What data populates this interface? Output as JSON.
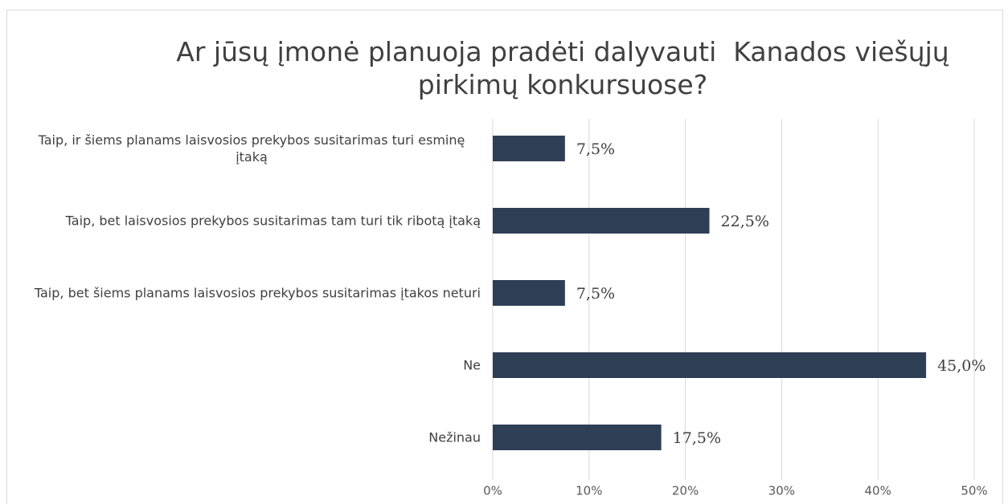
{
  "chart_data": {
    "type": "bar",
    "orientation": "horizontal",
    "title": "Ar jūsų įmonė planuoja pradėti dalyvauti  Kanados viešųjų pirkimų konkursuose?",
    "categories": [
      "Taip, ir šiems planams laisvosios prekybos susitarimas turi esminę įtaką",
      "Taip, bet laisvosios prekybos susitarimas tam turi tik ribotą įtaką",
      "Taip, bet šiems planams laisvosios prekybos susitarimas įtakos neturi",
      "Ne",
      "Nežinau"
    ],
    "values": [
      7.5,
      22.5,
      7.5,
      45.0,
      17.5
    ],
    "value_labels": [
      "7,5%",
      "22,5%",
      "7,5%",
      "45,0%",
      "17,5%"
    ],
    "color": "#2e3e55",
    "xlim": [
      0,
      50
    ],
    "xticks": [
      {
        "value": 0,
        "label": "0%"
      },
      {
        "value": 10,
        "label": "10%"
      },
      {
        "value": 20,
        "label": "20%"
      },
      {
        "value": 30,
        "label": "30%"
      },
      {
        "value": 40,
        "label": "40%"
      },
      {
        "value": 50,
        "label": "50%"
      }
    ],
    "grid": true
  }
}
